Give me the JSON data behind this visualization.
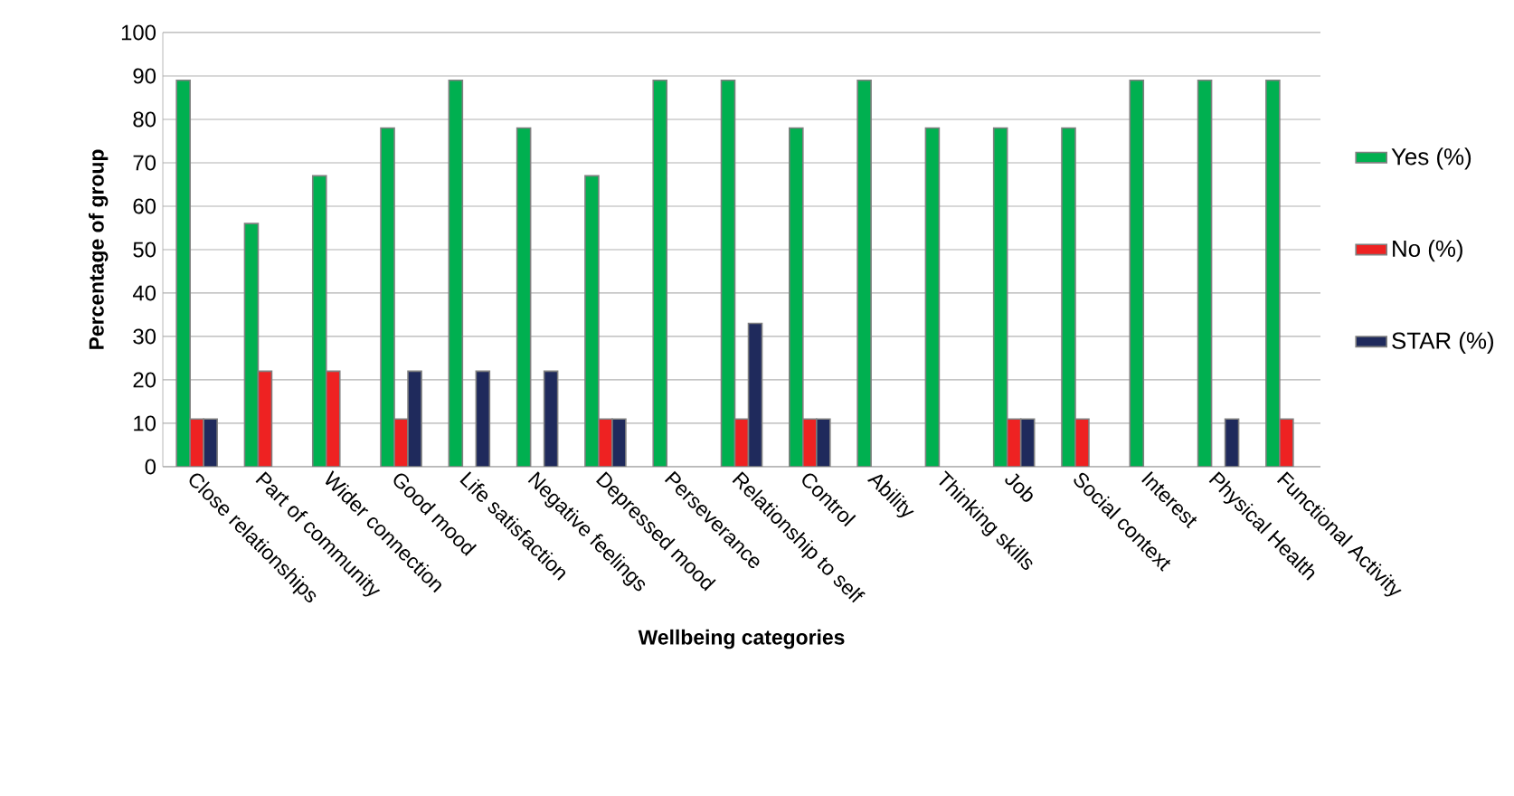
{
  "chart_data": {
    "type": "bar",
    "xlabel": "Wellbeing categories",
    "ylabel": "Percentage of group",
    "categories": [
      "Close relationships",
      "Part of community",
      "Wider connection",
      "Good mood",
      "Life satisfaction",
      "Negative feelings",
      "Depressed mood",
      "Perseverance",
      "Relationship to self",
      "Control",
      "Ability",
      "Thinking skills",
      "Job",
      "Social context",
      "Interest",
      "Physical Health",
      "Functional Activity"
    ],
    "series": [
      {
        "name": "Yes (%)",
        "color": "#00b050",
        "values": [
          89,
          56,
          67,
          78,
          89,
          78,
          67,
          89,
          89,
          78,
          89,
          78,
          78,
          78,
          89,
          89,
          89
        ]
      },
      {
        "name": "No (%)",
        "color": "#ee2222",
        "values": [
          11,
          22,
          22,
          11,
          null,
          null,
          11,
          null,
          11,
          11,
          null,
          null,
          11,
          11,
          null,
          null,
          11
        ]
      },
      {
        "name": "STAR (%)",
        "color": "#1f2a5c",
        "values": [
          11,
          null,
          null,
          22,
          22,
          22,
          11,
          null,
          33,
          11,
          null,
          null,
          11,
          null,
          null,
          11,
          null
        ]
      }
    ],
    "ylim": [
      0,
      100
    ],
    "yticks": [
      0,
      10,
      20,
      30,
      40,
      50,
      60,
      70,
      80,
      90,
      100
    ],
    "grid": "y",
    "legend": "right"
  }
}
